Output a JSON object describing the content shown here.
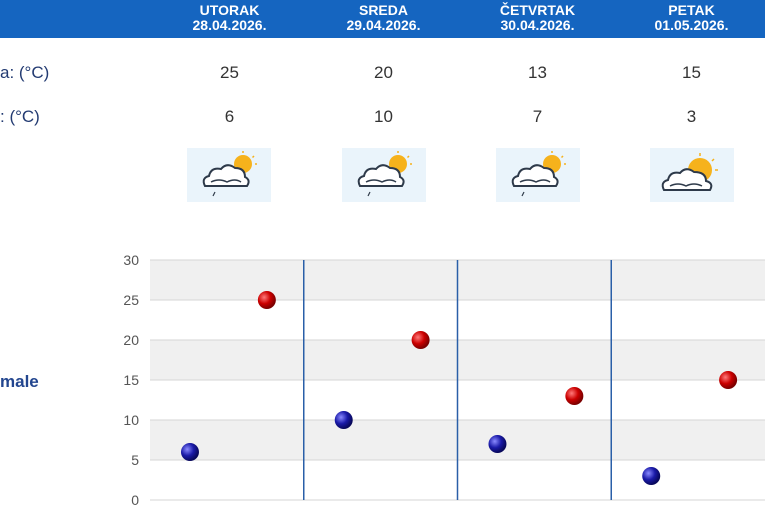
{
  "days": [
    {
      "name": "UTORAK",
      "date": "28.04.2026.",
      "max": "25",
      "min": "6",
      "icon": "cloud-sun-drizzle-icon"
    },
    {
      "name": "SREDA",
      "date": "29.04.2026.",
      "max": "20",
      "min": "10",
      "icon": "cloud-sun-drizzle-icon"
    },
    {
      "name": "ČETVRTAK",
      "date": "30.04.2026.",
      "max": "13",
      "min": "7",
      "icon": "cloud-sun-drizzle-icon"
    },
    {
      "name": "PETAK",
      "date": "01.05.2026.",
      "max": "15",
      "min": "3",
      "icon": "cloud-sun-icon"
    }
  ],
  "rows": {
    "max_label": "a: (°C)",
    "min_label": ": (°C)"
  },
  "chart_label": "male",
  "colors": {
    "header": "#1565c0",
    "max_point": "#cc0000",
    "min_point": "#1a1aa8",
    "divider": "#2a5fa8"
  },
  "chart_data": {
    "type": "scatter",
    "categories": [
      "UTORAK",
      "SREDA",
      "ČETVRTAK",
      "PETAK"
    ],
    "series": [
      {
        "values": [
          25,
          20,
          13,
          15
        ]
      },
      {
        "values": [
          6,
          10,
          7,
          3
        ]
      }
    ],
    "ylim": [
      0,
      30
    ],
    "yticks": [
      "0",
      "5",
      "10",
      "15",
      "20",
      "25",
      "30"
    ],
    "grid": true,
    "title": "",
    "xlabel": "",
    "ylabel": ""
  }
}
